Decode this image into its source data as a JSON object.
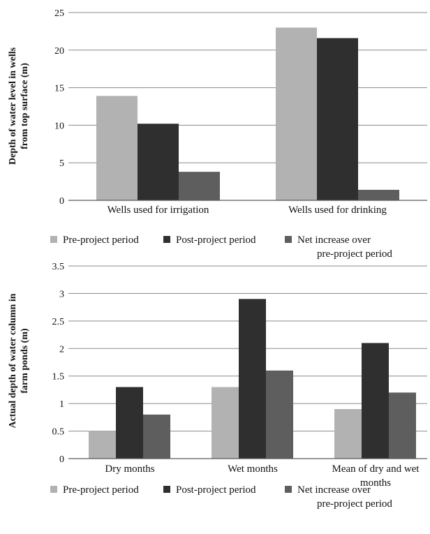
{
  "chart_data": [
    {
      "type": "bar",
      "title": "",
      "ylabel_lines": [
        "Depth of water level in wells",
        "from top surface (m)"
      ],
      "ylim": [
        0,
        25
      ],
      "yticks": [
        0,
        5,
        10,
        15,
        20,
        25
      ],
      "grid": true,
      "legend_position": "bottom",
      "categories": [
        [
          "Wells used for irrigation"
        ],
        [
          "Wells used for drinking"
        ]
      ],
      "series": [
        {
          "name": "Pre-project period",
          "values": [
            13.9,
            23.0
          ],
          "color": "#b2b2b2"
        },
        {
          "name": "Post-project period",
          "values": [
            10.2,
            21.6
          ],
          "color": "#2f2f2f"
        },
        {
          "name_lines": [
            "Net increase over",
            "pre-project period"
          ],
          "values": [
            3.8,
            1.4
          ],
          "color": "#5e5e5e"
        }
      ]
    },
    {
      "type": "bar",
      "title": "",
      "ylabel_lines": [
        "Actual depth of water column in",
        "farm ponds (m)"
      ],
      "ylim": [
        0,
        3.5
      ],
      "yticks": [
        0,
        0.5,
        1,
        1.5,
        2,
        2.5,
        3,
        3.5
      ],
      "grid": true,
      "legend_position": "bottom",
      "categories": [
        [
          "Dry months"
        ],
        [
          "Wet months"
        ],
        [
          "Mean of dry and wet",
          "months"
        ]
      ],
      "series": [
        {
          "name": "Pre-project period",
          "values": [
            0.5,
            1.3,
            0.9
          ],
          "color": "#b2b2b2"
        },
        {
          "name": "Post-project period",
          "values": [
            1.3,
            2.9,
            2.1
          ],
          "color": "#2f2f2f"
        },
        {
          "name_lines": [
            "Net increase over",
            "pre-project period"
          ],
          "values": [
            0.8,
            1.6,
            1.2
          ],
          "color": "#5e5e5e"
        }
      ]
    }
  ]
}
